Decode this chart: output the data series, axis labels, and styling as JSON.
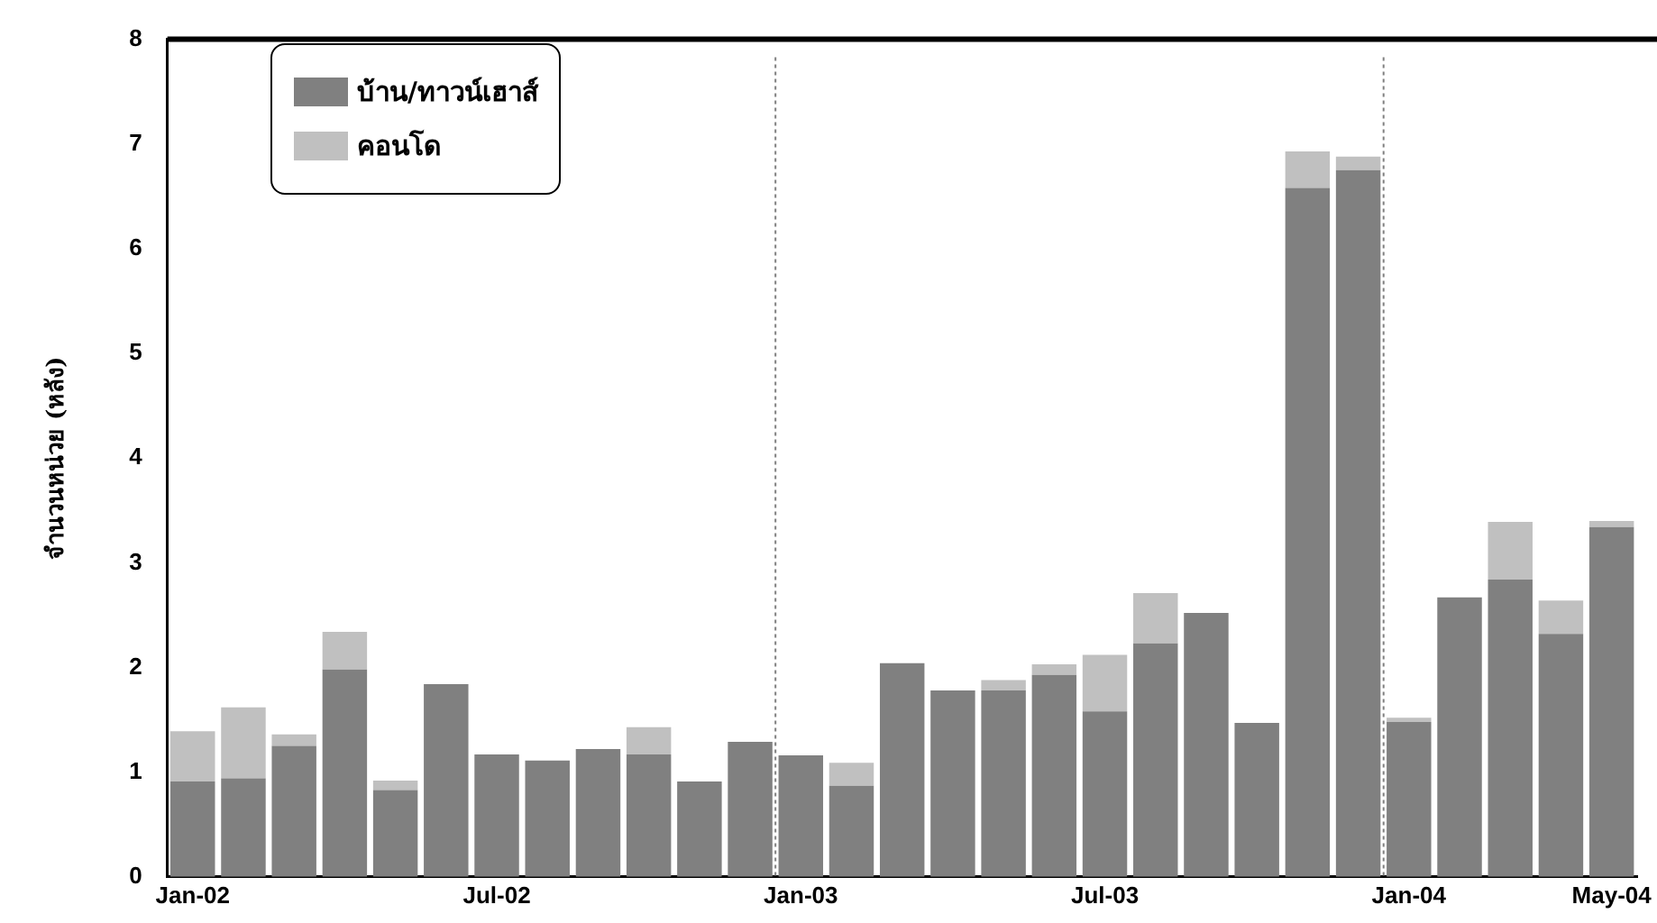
{
  "chart_data": {
    "type": "bar",
    "stacked": true,
    "ylabel": "จำนวนหน่วย (หลัง)",
    "categories": [
      "Jan-02",
      null,
      null,
      null,
      null,
      null,
      "Jul-02",
      null,
      null,
      null,
      null,
      null,
      "Jan-03",
      null,
      null,
      null,
      null,
      null,
      "Jul-03",
      null,
      null,
      null,
      null,
      null,
      "Jan-04",
      null,
      null,
      null,
      "May-04"
    ],
    "series": [
      {
        "name": "บ้าน/ทาวน์เฮาส์",
        "color": "#808080",
        "values": [
          0.91,
          0.94,
          1.25,
          1.98,
          0.83,
          1.84,
          1.17,
          1.11,
          1.22,
          1.17,
          0.91,
          1.29,
          1.16,
          0.87,
          2.04,
          1.78,
          1.78,
          1.93,
          1.58,
          2.23,
          2.52,
          1.47,
          6.58,
          6.75,
          1.48,
          2.67,
          2.84,
          2.32,
          3.34
        ]
      },
      {
        "name": "คอนโด",
        "color": "#c0c0c0",
        "values": [
          0.48,
          0.68,
          0.11,
          0.36,
          0.09,
          0,
          0,
          0,
          0,
          0.26,
          0,
          0,
          0,
          0.22,
          0,
          0,
          0.1,
          0.1,
          0.54,
          0.48,
          0,
          0,
          0.35,
          0.13,
          0.04,
          0,
          0.55,
          0.32,
          0.06
        ]
      }
    ],
    "ylim": [
      0,
      8
    ],
    "yticks": [
      0,
      1,
      2,
      3,
      4,
      5,
      6,
      7,
      8
    ],
    "grid": false,
    "legend": "top left"
  }
}
